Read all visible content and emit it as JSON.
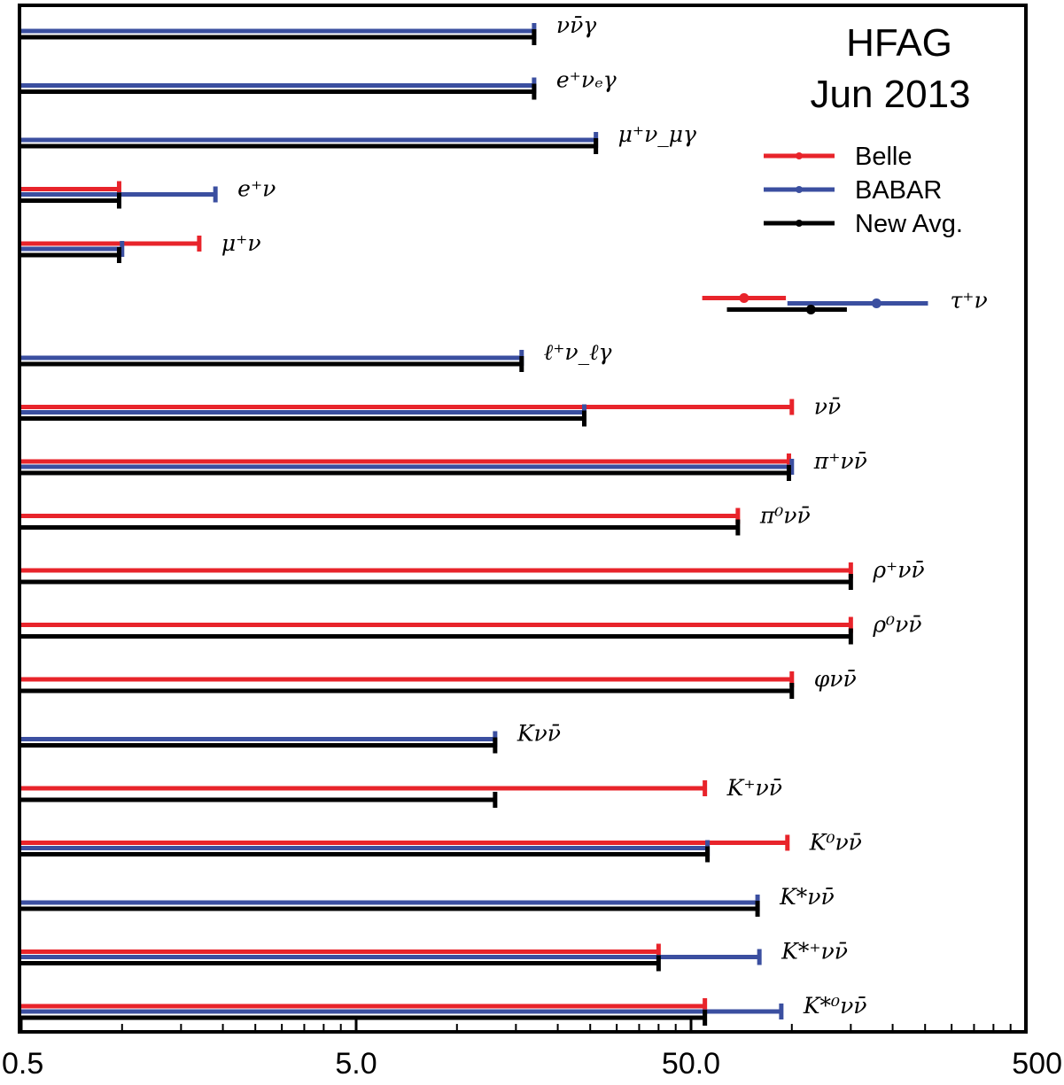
{
  "chart_data": {
    "type": "horizontal-errorbar",
    "header": [
      "HFAG",
      "Jun 2013"
    ],
    "x_scale": "log",
    "xlim": [
      0.5,
      500
    ],
    "xticks": [
      0.5,
      5.0,
      50.0,
      500
    ],
    "xtick_labels": [
      "0.5",
      "5.0",
      "50.0",
      "500"
    ],
    "legend_position": "top-right",
    "series": [
      {
        "key": "belle",
        "name": "Belle",
        "color": "#e8242b"
      },
      {
        "key": "babar",
        "name": "BABAR",
        "color": "#3b4fa0"
      },
      {
        "key": "avg",
        "name": "New Avg.",
        "color": "#000000"
      }
    ],
    "rows": [
      {
        "label": "νν̄γ",
        "babar": 17,
        "avg": 17
      },
      {
        "label": "e⁺νₑγ",
        "babar": 17,
        "avg": 17
      },
      {
        "label": "μ⁺ν_μγ",
        "babar": 26,
        "avg": 26
      },
      {
        "label": "e⁺ν",
        "belle": 0.98,
        "babar": 1.9,
        "avg": 0.98
      },
      {
        "label": "μ⁺ν",
        "belle": 1.7,
        "babar": 1.0,
        "avg": 0.98
      },
      {
        "label": "τ⁺ν",
        "measurements": [
          {
            "series": "belle",
            "central": 72,
            "low": 54,
            "high": 96
          },
          {
            "series": "babar",
            "central": 179,
            "low": 97,
            "high": 255
          },
          {
            "series": "avg",
            "central": 114,
            "low": 64,
            "high": 146
          }
        ]
      },
      {
        "label": "ℓ⁺ν_ℓγ",
        "babar": 15.6,
        "avg": 15.6
      },
      {
        "label": "νν̄",
        "belle": 100,
        "babar": 24,
        "avg": 24
      },
      {
        "label": "π⁺νν̄",
        "belle": 98,
        "babar": 100,
        "avg": 98
      },
      {
        "label": "π⁰νν̄",
        "belle": 69,
        "avg": 69
      },
      {
        "label": "ρ⁺νν̄",
        "belle": 150,
        "avg": 150
      },
      {
        "label": "ρ⁰νν̄",
        "belle": 150,
        "avg": 150
      },
      {
        "label": "φνν̄",
        "belle": 100,
        "avg": 100
      },
      {
        "label": "Kνν̄",
        "babar": 13,
        "avg": 13
      },
      {
        "label": "K⁺νν̄",
        "belle": 55,
        "avg": 13
      },
      {
        "label": "K⁰νν̄",
        "belle": 97,
        "babar": 56,
        "avg": 56
      },
      {
        "label": "K*νν̄",
        "babar": 79,
        "avg": 79
      },
      {
        "label": "K*⁺νν̄",
        "belle": 40,
        "babar": 80,
        "avg": 40
      },
      {
        "label": "K*⁰νν̄",
        "belle": 55,
        "babar": 93,
        "avg": 55
      }
    ]
  }
}
